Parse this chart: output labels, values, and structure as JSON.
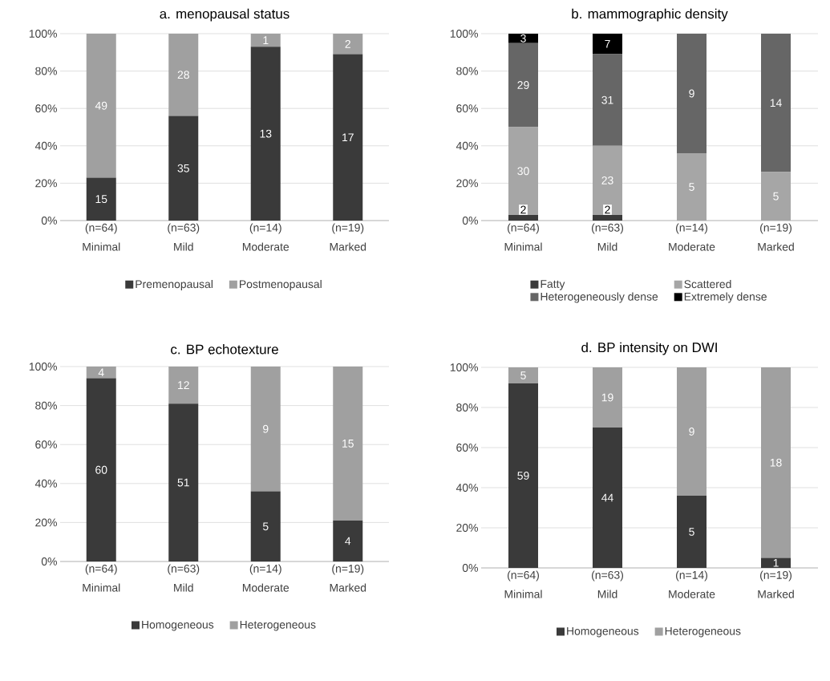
{
  "chart_data": [
    {
      "type": "bar",
      "stacked": true,
      "title": "a. menopausal status",
      "categories": [
        "(n=64) Minimal",
        "(n=63) Mild",
        "(n=14) Moderate",
        "(n=19) Marked"
      ],
      "series": [
        {
          "name": "Premenopausal",
          "color": "#3a3a3a",
          "values": [
            23,
            56,
            93,
            89
          ]
        },
        {
          "name": "Postmenopausal",
          "color": "#a0a0a0",
          "values": [
            77,
            44,
            7,
            11
          ]
        }
      ],
      "annotations": [
        "15",
        "35",
        "13",
        "17",
        "49",
        "28",
        "1",
        "2"
      ],
      "ylim": [
        0,
        100
      ],
      "yticks": [
        {
          "value": 0,
          "label": "0%"
        },
        {
          "value": 20,
          "label": "20%"
        },
        {
          "value": 40,
          "label": "40%"
        },
        {
          "value": 60,
          "label": "60%"
        },
        {
          "value": 80,
          "label": "80%"
        },
        {
          "value": 100,
          "label": "100%"
        }
      ],
      "grid": "y",
      "legend": "bottom"
    },
    {
      "type": "bar",
      "stacked": true,
      "title": "b. mammographic density",
      "categories": [
        "(n=64) Minimal",
        "(n=63) Mild",
        "(n=14) Moderate",
        "(n=19) Marked"
      ],
      "series": [
        {
          "name": "Fatty",
          "color": "#3a3a3a",
          "values": [
            3,
            3,
            0,
            0
          ]
        },
        {
          "name": "Scattered",
          "color": "#a6a6a6",
          "values": [
            47,
            37,
            36,
            26
          ]
        },
        {
          "name": "Heterogeneously dense",
          "color": "#666666",
          "values": [
            45,
            49,
            64,
            74
          ]
        },
        {
          "name": "Extremely dense",
          "color": "#000000",
          "values": [
            5,
            11,
            0,
            0
          ]
        }
      ],
      "annotations": [
        "2",
        "2",
        "30",
        "23",
        "5",
        "5",
        "29",
        "31",
        "9",
        "14",
        "3",
        "7"
      ],
      "ylim": [
        0,
        100
      ],
      "yticks": [
        {
          "value": 0,
          "label": "0%"
        },
        {
          "value": 20,
          "label": "20%"
        },
        {
          "value": 40,
          "label": "40%"
        },
        {
          "value": 60,
          "label": "60%"
        },
        {
          "value": 80,
          "label": "80%"
        },
        {
          "value": 100,
          "label": "100%"
        }
      ],
      "grid": "y",
      "legend": "bottom"
    },
    {
      "type": "bar",
      "stacked": true,
      "title": "c. BP echotexture",
      "categories": [
        "(n=64) Minimal",
        "(n=63) Mild",
        "(n=14) Moderate",
        "(n=19) Marked"
      ],
      "series": [
        {
          "name": "Homogeneous",
          "color": "#3a3a3a",
          "values": [
            94,
            81,
            36,
            21
          ]
        },
        {
          "name": "Heterogeneous",
          "color": "#a0a0a0",
          "values": [
            6,
            19,
            64,
            79
          ]
        }
      ],
      "annotations": [
        "60",
        "51",
        "5",
        "4",
        "4",
        "12",
        "9",
        "15"
      ],
      "ylim": [
        0,
        100
      ],
      "yticks": [
        {
          "value": 0,
          "label": "0%"
        },
        {
          "value": 20,
          "label": "20%"
        },
        {
          "value": 40,
          "label": "40%"
        },
        {
          "value": 60,
          "label": "60%"
        },
        {
          "value": 80,
          "label": "80%"
        },
        {
          "value": 100,
          "label": "100%"
        }
      ],
      "grid": "y",
      "legend": "bottom"
    },
    {
      "type": "bar",
      "stacked": true,
      "title": "d. BP intensity on DWI",
      "categories": [
        "(n=64) Minimal",
        "(n=63) Mild",
        "(n=14) Moderate",
        "(n=19) Marked"
      ],
      "series": [
        {
          "name": "Homogeneous",
          "color": "#3a3a3a",
          "values": [
            92,
            70,
            36,
            5
          ]
        },
        {
          "name": "Heterogeneous",
          "color": "#a0a0a0",
          "values": [
            8,
            30,
            64,
            95
          ]
        }
      ],
      "annotations": [
        "59",
        "44",
        "5",
        "1",
        "5",
        "19",
        "9",
        "18"
      ],
      "ylim": [
        0,
        100
      ],
      "yticks": [
        {
          "value": 0,
          "label": "0%"
        },
        {
          "value": 20,
          "label": "20%"
        },
        {
          "value": 40,
          "label": "40%"
        },
        {
          "value": 60,
          "label": "60%"
        },
        {
          "value": 80,
          "label": "80%"
        },
        {
          "value": 100,
          "label": "100%"
        }
      ],
      "grid": "y",
      "legend": "bottom"
    }
  ]
}
